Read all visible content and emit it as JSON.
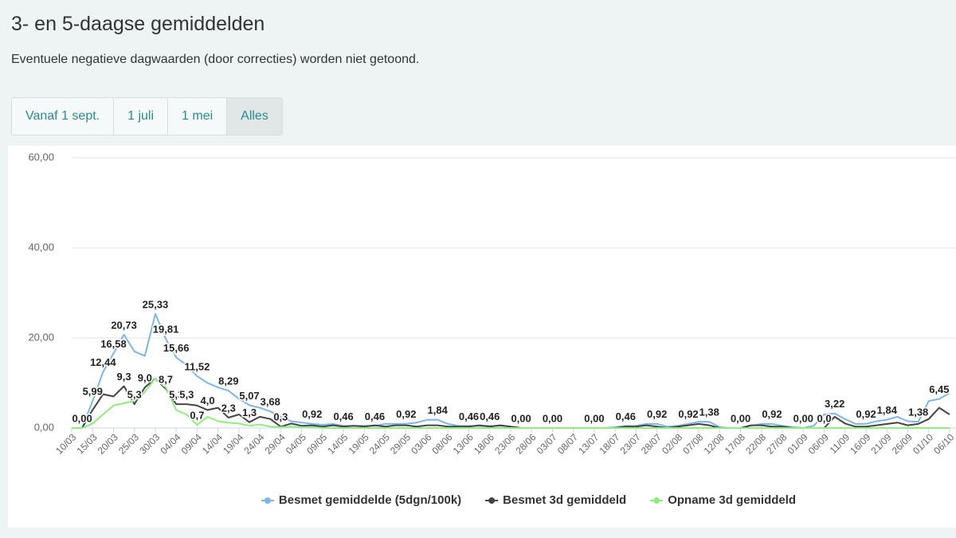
{
  "header": {
    "title": "3- en 5-daagse gemiddelden",
    "subtitle": "Eventuele negatieve dagwaarden (door correcties) worden niet getoond."
  },
  "buttons": [
    "Vanaf 1 sept.",
    "1 juli",
    "1 mei",
    "Alles"
  ],
  "active_button": 3,
  "chart_data": {
    "type": "line",
    "categories": [
      "10/03",
      null,
      "15/03",
      null,
      "20/03",
      null,
      "25/03",
      null,
      "30/03",
      null,
      "04/04",
      null,
      "09/04",
      null,
      "14/04",
      null,
      "19/04",
      null,
      "24/04",
      null,
      "29/04",
      null,
      "04/05",
      null,
      "09/05",
      null,
      "14/05",
      null,
      "19/05",
      null,
      "24/05",
      null,
      "29/05",
      null,
      "03/06",
      null,
      "08/06",
      null,
      "13/06",
      null,
      "18/06",
      null,
      "23/06",
      null,
      "28/06",
      null,
      "03/07",
      null,
      "08/07",
      null,
      "13/07",
      null,
      "18/07",
      null,
      "23/07",
      null,
      "28/07",
      null,
      "02/08",
      null,
      "07/08",
      null,
      "12/08",
      null,
      "17/08",
      null,
      "22/08",
      null,
      "27/08",
      null,
      "01/09",
      null,
      "06/09",
      null,
      "11/09",
      null,
      "16/09",
      null,
      "21/09",
      null,
      "26/09",
      null,
      "01/10",
      null,
      "06/10"
    ],
    "ylim": [
      0,
      60
    ],
    "yticks": [
      {
        "value": 0,
        "label": "0,00"
      },
      {
        "value": 20,
        "label": "20,00"
      },
      {
        "value": 40,
        "label": "40,00"
      },
      {
        "value": 60,
        "label": "60,00"
      }
    ],
    "grid": true,
    "legend": "bottom",
    "series": [
      {
        "name": "Besmet gemiddelde (5dgn/100k)",
        "color": "#7cb5ec",
        "values": [
          0,
          0,
          5.99,
          12.44,
          16.58,
          20.73,
          17,
          16,
          25.33,
          19.81,
          15.66,
          14,
          11.52,
          10,
          9,
          8.29,
          6.5,
          5.07,
          4.5,
          3.68,
          2.5,
          1.5,
          1.2,
          0.92,
          0.7,
          0.9,
          0.46,
          0.5,
          0.5,
          0.46,
          0.9,
          0.9,
          0.92,
          1.2,
          1.8,
          1.84,
          0.9,
          0.5,
          0.46,
          0.5,
          0.46,
          0.5,
          0.3,
          0,
          0,
          0,
          0,
          0,
          0,
          0,
          0,
          0,
          0.2,
          0.46,
          0.5,
          0.9,
          0.92,
          0.3,
          0.5,
          0.92,
          1.4,
          1.38,
          0.2,
          0,
          0,
          0.5,
          0.9,
          0.92,
          0.5,
          0.2,
          0,
          0.5,
          3,
          3.22,
          2,
          0.9,
          0.92,
          1.5,
          1.84,
          2.5,
          1.5,
          1.38,
          6,
          6.45,
          7.8
        ],
        "value_labels": [
          null,
          "0,00",
          "5,99",
          "12,44",
          "16,58",
          "20,73",
          null,
          null,
          "25,33",
          "19,81",
          "15,66",
          null,
          "11,52",
          null,
          null,
          "8,29",
          null,
          "5,07",
          null,
          "3,68",
          null,
          null,
          null,
          "0,92",
          null,
          null,
          "0,46",
          null,
          null,
          "0,46",
          null,
          null,
          "0,92",
          null,
          null,
          "1,84",
          null,
          null,
          "0,46",
          null,
          "0,46",
          null,
          null,
          "0,00",
          null,
          null,
          "0,00",
          null,
          null,
          null,
          "0,00",
          null,
          null,
          "0,46",
          null,
          null,
          "0,92",
          null,
          null,
          "0,92",
          null,
          "1,38",
          null,
          null,
          "0,00",
          null,
          null,
          "0,92",
          null,
          null,
          "0,00",
          null,
          null,
          "3,22",
          null,
          null,
          "0,92",
          null,
          "1,84",
          null,
          null,
          "1,38",
          null,
          "6,45",
          null
        ]
      },
      {
        "name": "Besmet 3d gemiddeld",
        "color": "#434348",
        "values": [
          0,
          0,
          4,
          7.5,
          7,
          9.3,
          5.3,
          9,
          11,
          8.7,
          5.3,
          5.3,
          5,
          4,
          4.5,
          2.3,
          3,
          1.3,
          2.5,
          2,
          0.3,
          1,
          0.5,
          0.6,
          0.3,
          0.6,
          0.3,
          0.5,
          0.3,
          0.6,
          0.3,
          0.6,
          0.6,
          0.3,
          0.6,
          0.6,
          0.3,
          0.3,
          0.3,
          0.6,
          0.3,
          0.6,
          0.3,
          0,
          0,
          0,
          0,
          0,
          0,
          0,
          0,
          0,
          0,
          0.3,
          0.3,
          0.6,
          0.3,
          0,
          0.3,
          0.6,
          0.9,
          0.6,
          0,
          0,
          0,
          0.6,
          0.6,
          0.3,
          0.3,
          0,
          0,
          0,
          0,
          2.5,
          1,
          0.3,
          0.3,
          0.6,
          0.9,
          1.2,
          0.6,
          0.9,
          2,
          4.5,
          3
        ],
        "value_labels": [
          null,
          null,
          null,
          null,
          null,
          "9,3",
          "5,3",
          "9,0",
          null,
          "8,7",
          "5,3",
          "5,3",
          null,
          "4,0",
          null,
          "2,3",
          null,
          "1,3",
          null,
          null,
          "0,3",
          null,
          null,
          null,
          null,
          null,
          null,
          null,
          null,
          null,
          null,
          null,
          null,
          null,
          null,
          null,
          null,
          null,
          null,
          null,
          null,
          null,
          null,
          null,
          null,
          null,
          null,
          null,
          null,
          null,
          null,
          null,
          null,
          null,
          null,
          null,
          null,
          null,
          null,
          null,
          null,
          null,
          null,
          null,
          null,
          null,
          null,
          null,
          null,
          null,
          null,
          null,
          "0,0",
          null,
          null,
          null,
          null,
          null,
          null,
          null,
          null,
          null,
          null,
          null,
          null
        ]
      },
      {
        "name": "Opname 3d gemiddeld",
        "color": "#90ed7d",
        "values": [
          0,
          0,
          1,
          3,
          5,
          5.5,
          6,
          8,
          11,
          9,
          4,
          3,
          0.7,
          2.5,
          1.5,
          1.2,
          1,
          0.5,
          0.8,
          0.3,
          0.2,
          0.3,
          0.2,
          0.2,
          0,
          0,
          0,
          0,
          0,
          0,
          0,
          0,
          0,
          0,
          0,
          0,
          0,
          0,
          0,
          0,
          0,
          0,
          0,
          0,
          0,
          0,
          0,
          0,
          0,
          0,
          0,
          0,
          0,
          0,
          0,
          0,
          0,
          0,
          0,
          0,
          0,
          0,
          0,
          0,
          0,
          0,
          0,
          0,
          0,
          0,
          0,
          0,
          0,
          0,
          0,
          0,
          0,
          0,
          0,
          0,
          0,
          0,
          0,
          0,
          0
        ],
        "value_labels": [
          null,
          null,
          null,
          null,
          null,
          null,
          null,
          null,
          null,
          null,
          null,
          null,
          "0,7",
          null,
          null,
          null,
          null,
          null,
          null,
          null,
          null,
          null,
          null,
          null,
          null,
          null,
          null,
          null,
          null,
          null,
          null,
          null,
          null,
          null,
          null,
          null,
          null,
          null,
          null,
          null,
          null,
          null,
          null,
          null,
          null,
          null,
          null,
          null,
          null,
          null,
          null,
          null,
          null,
          null,
          null,
          null,
          null,
          null,
          null,
          null,
          null,
          null,
          null,
          null,
          null,
          null,
          null,
          null,
          null,
          null,
          null,
          null,
          null,
          null,
          null,
          null,
          null,
          null,
          null,
          null,
          null,
          null,
          null,
          null,
          null
        ]
      }
    ]
  }
}
